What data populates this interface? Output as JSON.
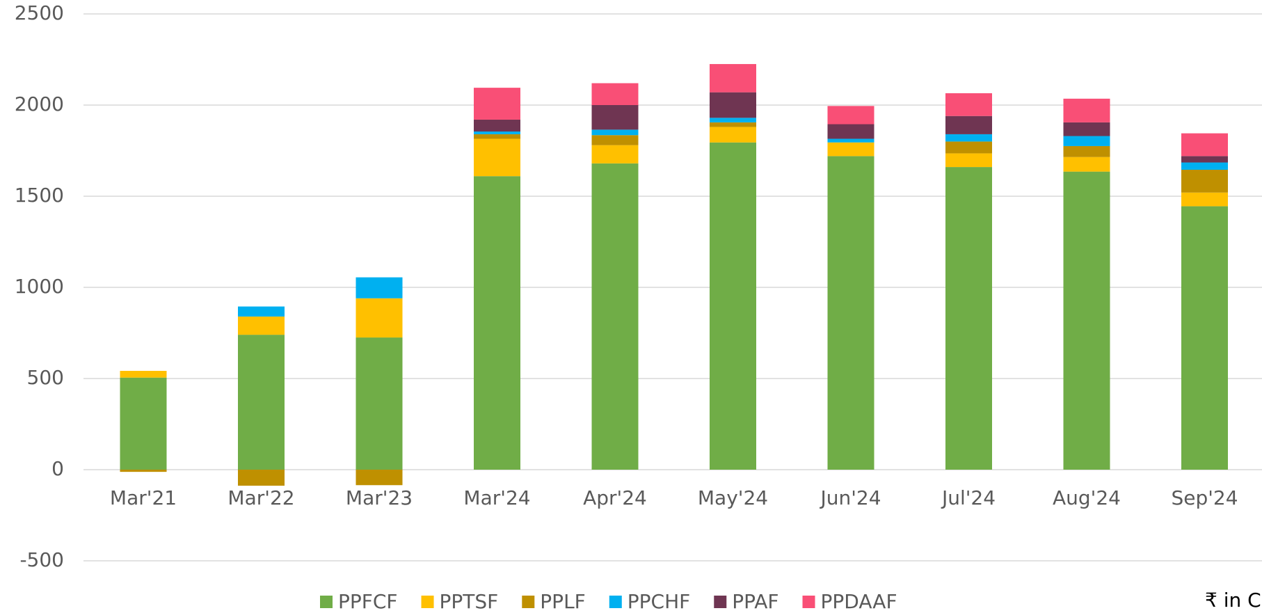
{
  "chart_data": {
    "type": "stacked_bar",
    "categories": [
      "Mar'21",
      "Mar'22",
      "Mar'23",
      "Mar'24",
      "Apr'24",
      "May'24",
      "Jun'24",
      "Jul'24",
      "Aug'24",
      "Sep'24"
    ],
    "series": [
      {
        "name": "PPFCF",
        "color": "#70ad47",
        "values": [
          505,
          740,
          725,
          1610,
          1680,
          1795,
          1720,
          1660,
          1635,
          1445
        ]
      },
      {
        "name": "PPTSF",
        "color": "#ffc000",
        "values": [
          37,
          100,
          215,
          205,
          100,
          85,
          75,
          75,
          80,
          75
        ]
      },
      {
        "name": "PPLF",
        "color": "#bf9000",
        "values": [
          -12,
          -88,
          -85,
          25,
          55,
          25,
          0,
          65,
          60,
          125
        ]
      },
      {
        "name": "PPCHF",
        "color": "#00b0f0",
        "values": [
          0,
          55,
          115,
          15,
          30,
          25,
          20,
          40,
          55,
          40
        ]
      },
      {
        "name": "PPAF",
        "color": "#6f3552",
        "values": [
          0,
          0,
          0,
          65,
          135,
          140,
          80,
          100,
          75,
          35
        ]
      },
      {
        "name": "PPDAAF",
        "color": "#f94f76",
        "values": [
          0,
          0,
          0,
          175,
          120,
          155,
          100,
          125,
          130,
          125
        ]
      }
    ],
    "ylim": [
      -500,
      2500
    ],
    "yticks": [
      -500,
      0,
      500,
      1000,
      1500,
      2000,
      2500
    ],
    "grid": true,
    "legend": "bottom",
    "annotation": "₹ in C"
  }
}
